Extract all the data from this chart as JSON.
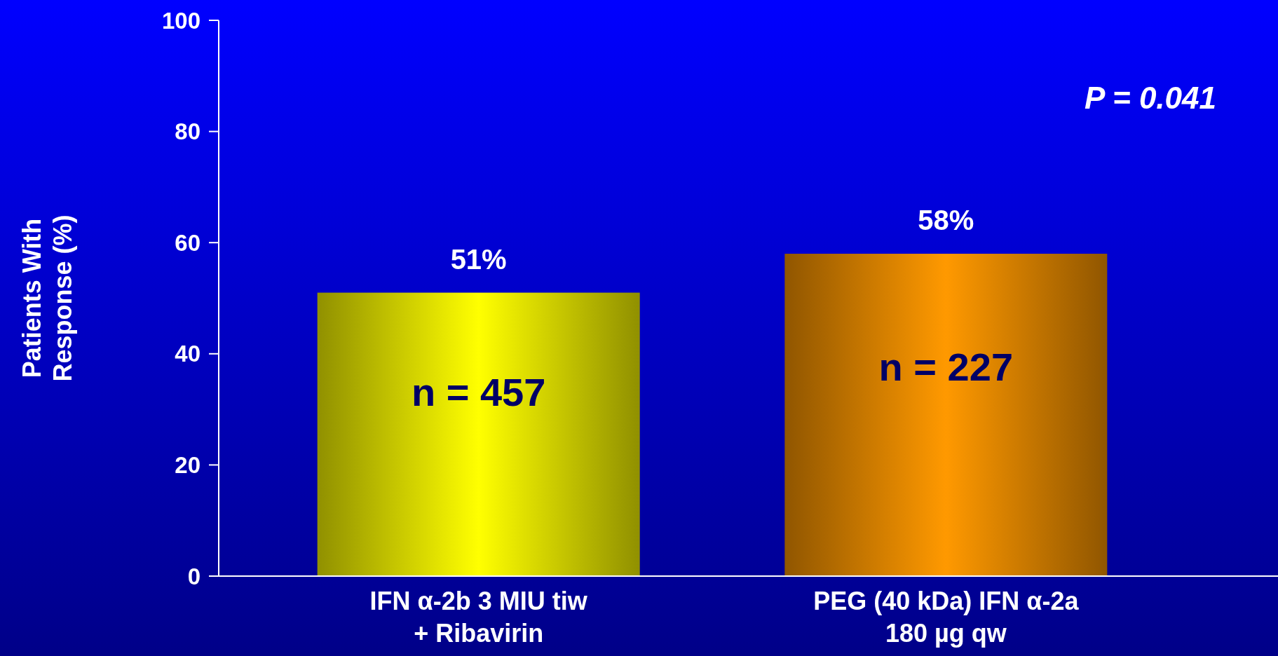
{
  "chart_data": {
    "type": "bar",
    "ylabel": "Patients With\nResponse (%)",
    "categories": [
      "IFN α-2b 3 MIU tiw\n+ Ribavirin",
      "PEG (40 kDa) IFN α-2a\n180 µg qw"
    ],
    "values": [
      51,
      58
    ],
    "colors": [
      "#ffff00",
      "#ff9900"
    ],
    "value_labels": [
      "51%",
      "58%"
    ],
    "ylim": [
      0,
      100
    ],
    "yticks": [
      0,
      20,
      40,
      60,
      80,
      100
    ],
    "grid": false,
    "annotations": [
      "n = 457",
      "n = 227",
      "P = 0.041"
    ]
  }
}
